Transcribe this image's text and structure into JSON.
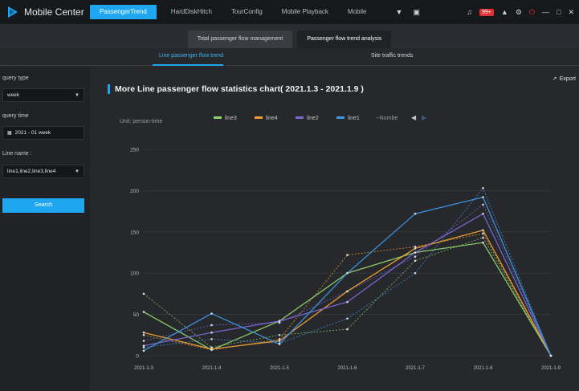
{
  "app": {
    "title": "Mobile Center"
  },
  "nav": [
    {
      "label": "PassengerTrend",
      "active": true
    },
    {
      "label": "HardDiskHitch",
      "active": false
    },
    {
      "label": "TourConfig",
      "active": false
    },
    {
      "label": "Mobile Playback",
      "active": false
    },
    {
      "label": "Mobile",
      "active": false
    }
  ],
  "toolbar": {
    "badge": "99+"
  },
  "subtabs": [
    {
      "label": "Total passenger flow management",
      "active": false
    },
    {
      "label": "Passenger flow trend analysis",
      "active": true
    }
  ],
  "tabs2": [
    {
      "label": "Line passenger flow trend",
      "active": true
    },
    {
      "label": "Site traffic trends",
      "active": false
    }
  ],
  "sidebar": {
    "query_type_label": "query type",
    "query_type_value": "week",
    "query_time_label": "query time",
    "query_time_value": "2021 - 01 week",
    "line_name_label": "Line name :",
    "line_name_value": "line1,line2,line3,line4",
    "search_label": "Search"
  },
  "chart_header": {
    "title": "More Line passenger flow statistics chart( 2021.1.3 - 2021.1.9 )",
    "export_label": "Export"
  },
  "chart_data": {
    "type": "line",
    "unit_label": "Unit: person-time",
    "x": [
      "2021-1-3",
      "2021-1-4",
      "2021-1-5",
      "2021-1-6",
      "2021-1-7",
      "2021-1-8",
      "2021-1-9"
    ],
    "ylim": [
      0,
      250
    ],
    "yticks": [
      0,
      50,
      100,
      150,
      200,
      250
    ],
    "grid": true,
    "legend_position": "top",
    "legend_extra": "--Numbe",
    "series": [
      {
        "name": "line3",
        "color": "#8fd46b",
        "values": [
          53,
          7,
          42,
          100,
          125,
          137,
          0
        ]
      },
      {
        "name": "line4",
        "color": "#f0a030",
        "values": [
          28,
          8,
          18,
          78,
          130,
          152,
          0
        ]
      },
      {
        "name": "line2",
        "color": "#7b66d6",
        "values": [
          12,
          28,
          42,
          65,
          125,
          172,
          0
        ]
      },
      {
        "name": "line1",
        "color": "#3d96e6",
        "values": [
          6,
          51,
          14,
          100,
          172,
          192,
          0
        ]
      }
    ],
    "extra_series": [
      {
        "color": "#8fd46b",
        "values": [
          75,
          10,
          25,
          32,
          115,
          143,
          0
        ]
      },
      {
        "color": "#f0a030",
        "values": [
          25,
          7,
          20,
          122,
          132,
          148,
          0
        ]
      },
      {
        "color": "#7b66d6",
        "values": [
          18,
          37,
          40,
          78,
          120,
          183,
          0
        ]
      },
      {
        "color": "#3d96e6",
        "values": [
          10,
          20,
          15,
          45,
          100,
          203,
          0
        ]
      }
    ]
  }
}
